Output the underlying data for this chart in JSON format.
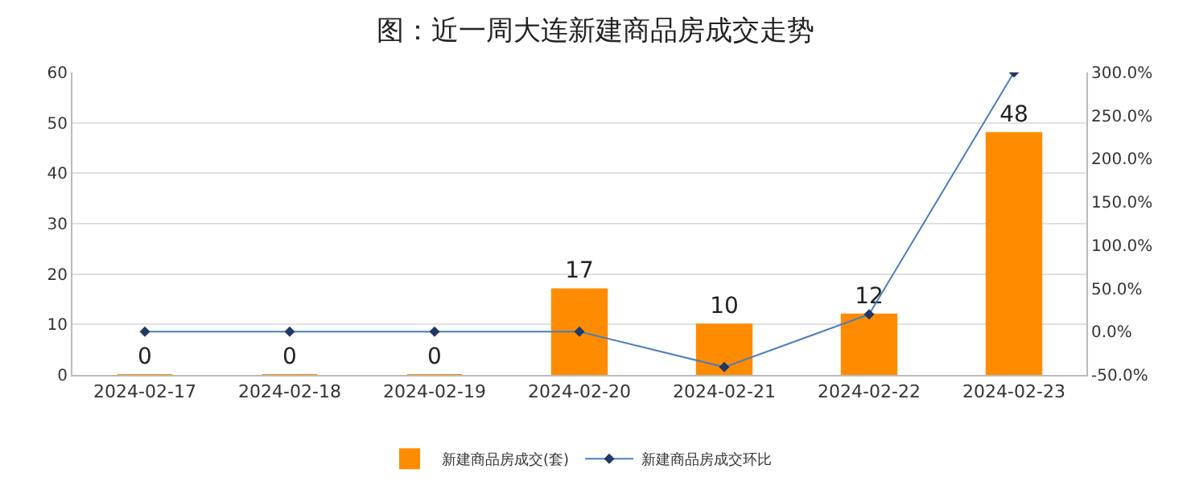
{
  "chart_data": {
    "type": "bar",
    "title": "图：近一周大连新建商品房成交走势",
    "categories": [
      "2024-02-17",
      "2024-02-18",
      "2024-02-19",
      "2024-02-20",
      "2024-02-21",
      "2024-02-22",
      "2024-02-23"
    ],
    "series": [
      {
        "name": "新建商品房成交(套)",
        "color": "#ff8c00",
        "values": [
          0,
          0,
          0,
          17,
          10,
          12,
          48
        ],
        "data_labels": true
      },
      {
        "name": "新建商品房成交环比",
        "type": "line",
        "axis": "y2",
        "color": "#4a7ebb",
        "values": [
          0,
          0,
          0,
          0,
          -41,
          20,
          300
        ],
        "marker": "diamond"
      }
    ],
    "ylim": [
      0,
      60
    ],
    "yticks": [
      0,
      10,
      20,
      30,
      40,
      50,
      60
    ],
    "y2lim": [
      -50,
      300
    ],
    "y2ticks": [
      {
        "value": -50,
        "label": "-50.0%"
      },
      {
        "value": 0,
        "label": "0.0%"
      },
      {
        "value": 50,
        "label": "50.0%"
      },
      {
        "value": 100,
        "label": "100.0%"
      },
      {
        "value": 150,
        "label": "150.0%"
      },
      {
        "value": 200,
        "label": "200.0%"
      },
      {
        "value": 250,
        "label": "250.0%"
      },
      {
        "value": 300,
        "label": "300.0%"
      }
    ],
    "grid": "y",
    "legend": "bottom"
  }
}
